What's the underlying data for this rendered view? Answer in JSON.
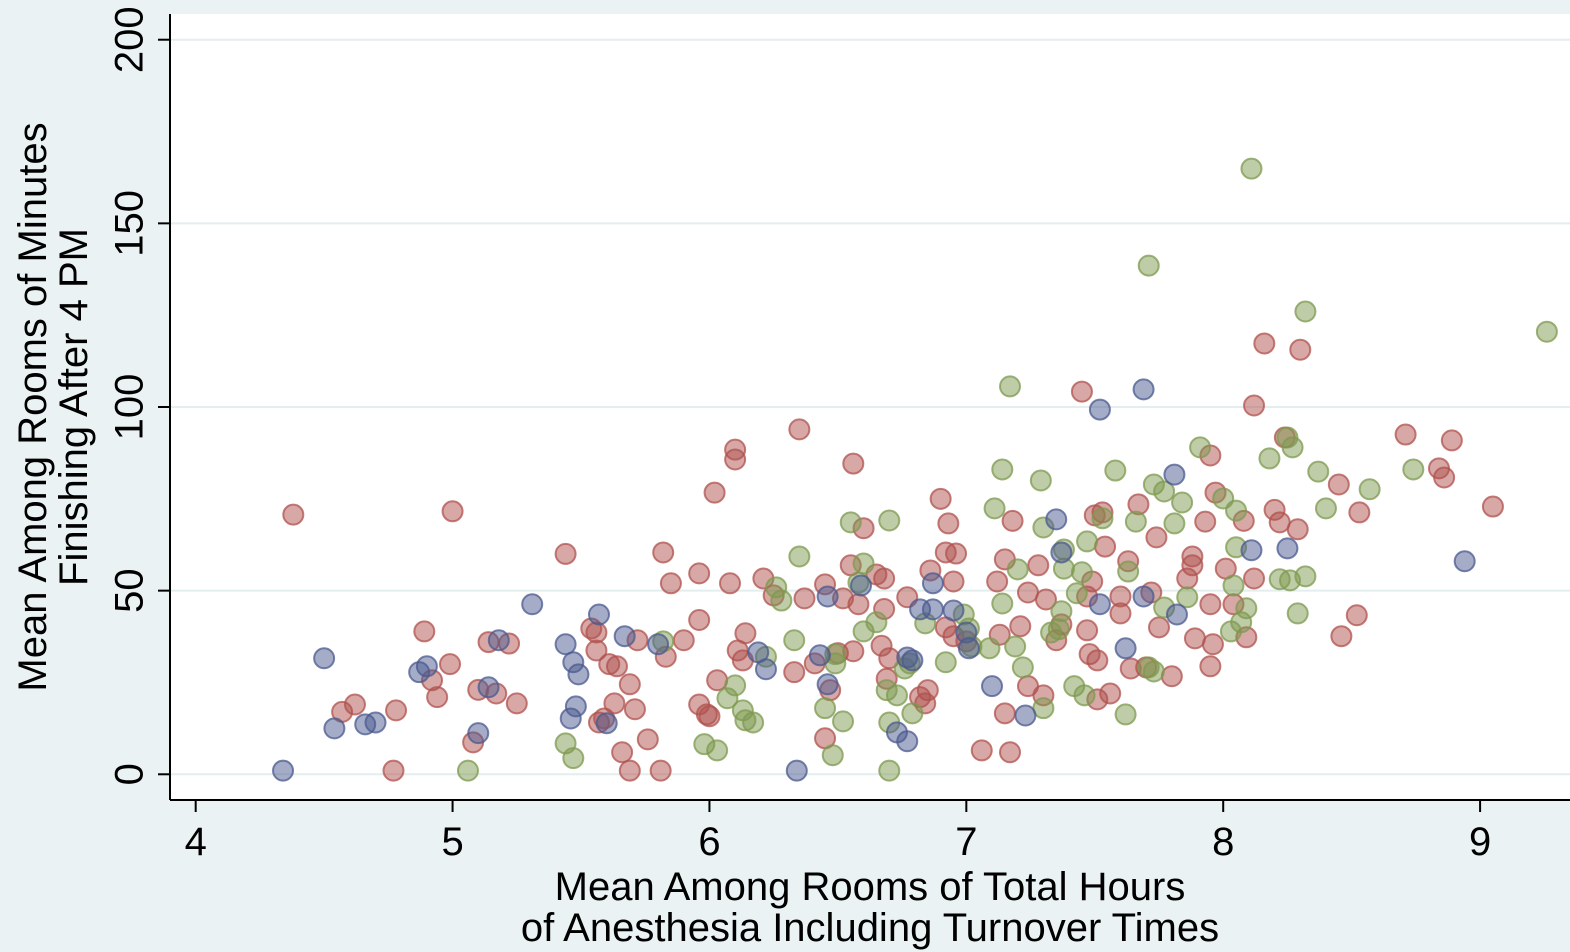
{
  "chart_data": {
    "type": "scatter",
    "xlabel": [
      "Mean Among Rooms of Total Hours",
      "of Anesthesia Including Turnover Times"
    ],
    "ylabel": [
      "Mean Among Rooms of Minutes",
      "Finishing After 4 PM"
    ],
    "xlim": [
      3.9,
      9.35
    ],
    "ylim": [
      -7,
      207
    ],
    "xticks": [
      4,
      5,
      6,
      7,
      8,
      9
    ],
    "yticks": [
      0,
      50,
      100,
      150,
      200
    ],
    "grid": true,
    "series": [
      {
        "color": "#b0524e",
        "x": [
          4.38,
          5.0,
          4.89,
          4.77,
          4.78,
          4.62,
          4.57,
          4.92,
          4.94,
          4.99,
          5.08,
          5.1,
          5.14,
          5.17,
          5.22,
          5.25,
          5.44,
          5.54,
          5.56,
          5.56,
          5.61,
          5.64,
          5.63,
          5.59,
          5.57,
          5.66,
          5.69,
          5.71,
          5.69,
          5.72,
          5.76,
          5.82,
          5.81,
          5.83,
          5.85,
          5.9,
          5.96,
          5.96,
          5.96,
          5.99,
          6.0,
          6.02,
          6.03,
          6.08,
          6.1,
          6.1,
          6.11,
          6.13,
          6.14,
          6.21,
          6.25,
          6.33,
          6.35,
          6.37,
          6.41,
          6.45,
          6.45,
          6.47,
          6.5,
          6.52,
          6.56,
          6.55,
          6.56,
          6.58,
          6.6,
          6.65,
          6.68,
          6.67,
          6.68,
          6.7,
          6.69,
          6.77,
          6.82,
          6.84,
          6.85,
          6.86,
          6.9,
          6.92,
          6.92,
          6.93,
          6.95,
          6.96,
          6.95,
          7.0,
          7.06,
          7.12,
          7.15,
          7.13,
          7.15,
          7.17,
          7.18,
          7.21,
          7.24,
          7.24,
          7.28,
          7.3,
          7.31,
          7.35,
          7.37,
          7.45,
          7.47,
          7.47,
          7.5,
          7.49,
          7.48,
          7.51,
          7.51,
          7.53,
          7.54,
          7.56,
          7.6,
          7.6,
          7.63,
          7.64,
          7.67,
          7.7,
          7.72,
          7.74,
          7.75,
          7.8,
          7.86,
          7.88,
          7.88,
          7.89,
          7.93,
          7.95,
          7.95,
          7.96,
          7.97,
          7.95,
          8.01,
          8.04,
          8.08,
          8.09,
          8.12,
          8.12,
          8.16,
          8.2,
          8.22,
          8.24,
          8.29,
          8.3,
          8.45,
          8.46,
          8.53,
          8.52,
          8.71,
          8.84,
          8.86,
          8.89,
          9.05
        ],
        "values": [
          70.7,
          71.6,
          38.9,
          1,
          17.4,
          19,
          17,
          25.6,
          21,
          30,
          8.7,
          23,
          36,
          22,
          35.6,
          19.3,
          60,
          39.7,
          38.6,
          33.7,
          30,
          29.4,
          19.3,
          15.2,
          14.1,
          6,
          24.5,
          17.7,
          1,
          36.5,
          9.5,
          60.4,
          1,
          32,
          52,
          36.5,
          42,
          54.7,
          19,
          16.3,
          15.8,
          76.7,
          25.6,
          52,
          88.4,
          85.7,
          33.7,
          31,
          38.4,
          53.3,
          48.7,
          27.8,
          93.9,
          47.9,
          30.2,
          51.7,
          9.8,
          22.9,
          33,
          47.9,
          84.6,
          56.9,
          33.5,
          46.3,
          67,
          54.4,
          53.3,
          35,
          45,
          31.6,
          26,
          48.2,
          21,
          19.3,
          22.9,
          55.5,
          75,
          40,
          60.4,
          68.3,
          52.5,
          60.1,
          37.6,
          36.2,
          6.5,
          52.5,
          58.5,
          38,
          16.6,
          6,
          69,
          40.3,
          49.5,
          24,
          56.9,
          21.5,
          47.6,
          36.5,
          40.8,
          104.2,
          39.2,
          48.4,
          70.5,
          52.5,
          32.7,
          31,
          20.4,
          71.3,
          62,
          22,
          43.8,
          48.4,
          58,
          28.8,
          73.5,
          29.1,
          49.5,
          64.5,
          40,
          26.7,
          53.3,
          59.3,
          56.9,
          37,
          68.8,
          86.8,
          29.4,
          35.4,
          76.7,
          46.3,
          56,
          46.3,
          69,
          37.3,
          53.3,
          100.4,
          117.3,
          72,
          68.6,
          91.7,
          66.7,
          115.6,
          78.9,
          37.6,
          71.3,
          43.3,
          92.5,
          83.3,
          80.8,
          90.9,
          72.9
        ]
      },
      {
        "color": "#7d9a4f",
        "x": [
          5.06,
          5.44,
          5.47,
          5.82,
          5.98,
          6.03,
          6.07,
          6.1,
          6.13,
          6.14,
          6.17,
          6.22,
          6.26,
          6.28,
          6.33,
          6.35,
          6.45,
          6.48,
          6.49,
          6.49,
          6.52,
          6.55,
          6.58,
          6.6,
          6.6,
          6.65,
          6.69,
          6.7,
          6.7,
          6.7,
          6.73,
          6.76,
          6.78,
          6.79,
          6.84,
          6.92,
          6.99,
          7.01,
          7.02,
          7.09,
          7.11,
          7.14,
          7.14,
          7.17,
          7.19,
          7.2,
          7.22,
          7.29,
          7.3,
          7.3,
          7.33,
          7.36,
          7.37,
          7.38,
          7.38,
          7.42,
          7.43,
          7.45,
          7.47,
          7.46,
          7.53,
          7.58,
          7.62,
          7.63,
          7.66,
          7.71,
          7.71,
          7.73,
          7.73,
          7.77,
          7.77,
          7.81,
          7.84,
          7.86,
          7.91,
          8.0,
          8.05,
          8.05,
          8.04,
          8.07,
          8.03,
          8.09,
          8.11,
          8.18,
          8.22,
          8.25,
          8.26,
          8.27,
          8.29,
          8.32,
          8.32,
          8.37,
          8.4,
          8.57,
          8.74,
          9.26
        ],
        "values": [
          1,
          8.4,
          4.4,
          36.2,
          8.2,
          6.5,
          20.7,
          24.2,
          17.4,
          14.7,
          14.1,
          32,
          50.9,
          47.3,
          36.5,
          59.3,
          18,
          5.2,
          32.7,
          30.2,
          14.4,
          68.6,
          52.2,
          57.4,
          38.9,
          41.4,
          22.9,
          69.1,
          1,
          14.1,
          21.5,
          28.8,
          30.2,
          16.6,
          41.1,
          30.5,
          43.5,
          39.7,
          34.8,
          34.3,
          72.4,
          83,
          46.5,
          105.6,
          34.8,
          55.8,
          29.1,
          80,
          67.2,
          18,
          38.6,
          39.5,
          44.4,
          61.2,
          56,
          24,
          49.3,
          55,
          63.4,
          21.5,
          69.7,
          82.7,
          16.3,
          55.2,
          68.8,
          138.5,
          29.1,
          78.9,
          28,
          77,
          45.4,
          68.3,
          74,
          48.2,
          89,
          75.1,
          71.8,
          61.8,
          51.4,
          41.4,
          38.9,
          45.2,
          164.9,
          86,
          53.1,
          91.7,
          52.8,
          89,
          43.8,
          126,
          53.9,
          82.4,
          72.4,
          77.6,
          83,
          120.5
        ]
      },
      {
        "color": "#4b5a8f",
        "x": [
          4.34,
          4.5,
          4.54,
          4.66,
          4.7,
          4.87,
          4.9,
          5.1,
          5.14,
          5.18,
          5.31,
          5.44,
          5.47,
          5.46,
          5.48,
          5.49,
          5.57,
          5.6,
          5.67,
          5.8,
          6.19,
          6.22,
          6.34,
          6.43,
          6.46,
          6.46,
          6.59,
          6.73,
          6.77,
          6.77,
          6.79,
          6.82,
          6.87,
          6.87,
          6.95,
          7.0,
          7.01,
          7.1,
          7.23,
          7.35,
          7.37,
          7.52,
          7.52,
          7.62,
          7.69,
          7.69,
          7.81,
          7.82,
          8.11,
          8.25,
          8.94
        ],
        "values": [
          1,
          31.6,
          12.5,
          13.6,
          14.1,
          27.8,
          29.4,
          11.2,
          23.7,
          36.5,
          46.3,
          35.4,
          30.5,
          15.2,
          18.5,
          27.2,
          43.5,
          13.9,
          37.6,
          35.4,
          33.2,
          28.6,
          1,
          32.4,
          24.5,
          48.4,
          51.4,
          11.4,
          9,
          31.8,
          31,
          44.9,
          44.9,
          52,
          44.6,
          38.6,
          34.3,
          24,
          16,
          69.4,
          60.4,
          99.3,
          46.3,
          34.3,
          104.8,
          48.4,
          81.6,
          43.5,
          61,
          61.5,
          58
        ]
      }
    ]
  }
}
